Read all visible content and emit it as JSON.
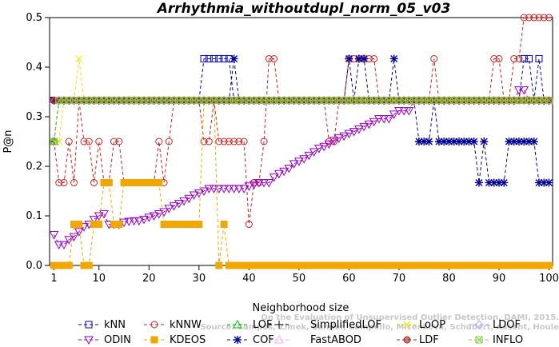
{
  "chart_data": {
    "type": "line",
    "title": "Arrhythmia_withoutdupl_norm_05_v03",
    "xlabel": "Neighborhood size",
    "ylabel": "P@n",
    "xlim": [
      1,
      100
    ],
    "ylim": [
      0,
      0.5
    ],
    "x_ticks": [
      "1",
      "10",
      "20",
      "30",
      "40",
      "50",
      "60",
      "70",
      "80",
      "90",
      "100"
    ],
    "y_ticks": [
      "0.0",
      "0.1",
      "0.2",
      "0.3",
      "0.4",
      "0.5"
    ],
    "grid": false,
    "legend_position": "bottom",
    "watermark": [
      "Source: Campos, Zimek, Sander, Campello, Micenkova, Schubert, Assent, Houle",
      "On the Evaluation of Unsupervised Outlier Detection, DAMI, 2015."
    ],
    "series": [
      {
        "name": "kNN",
        "color": "#0000cc",
        "marker": "square",
        "points": [
          [
            1,
            0.333
          ],
          [
            30,
            0.333
          ],
          [
            31,
            0.417
          ],
          [
            36,
            0.417
          ],
          [
            37,
            0.333
          ],
          [
            94,
            0.333
          ],
          [
            95,
            0.417
          ],
          [
            96,
            0.417
          ],
          [
            97,
            0.333
          ],
          [
            98,
            0.417
          ],
          [
            99,
            0.333
          ],
          [
            100,
            0.333
          ]
        ]
      },
      {
        "name": "kNNW",
        "color": "#cc2222",
        "marker": "circle",
        "points": [
          [
            1,
            0.25
          ],
          [
            2,
            0.167
          ],
          [
            3,
            0.167
          ],
          [
            4,
            0.25
          ],
          [
            5,
            0.167
          ],
          [
            6,
            0.333
          ],
          [
            7,
            0.25
          ],
          [
            8,
            0.25
          ],
          [
            9,
            0.167
          ],
          [
            10,
            0.25
          ],
          [
            11,
            0.167
          ],
          [
            12,
            0.167
          ],
          [
            13,
            0.25
          ],
          [
            14,
            0.25
          ],
          [
            15,
            0.167
          ],
          [
            16,
            0.167
          ],
          [
            17,
            0.167
          ],
          [
            18,
            0.167
          ],
          [
            19,
            0.167
          ],
          [
            20,
            0.167
          ],
          [
            21,
            0.167
          ],
          [
            22,
            0.25
          ],
          [
            23,
            0.167
          ],
          [
            24,
            0.25
          ],
          [
            25,
            0.333
          ],
          [
            30,
            0.333
          ],
          [
            31,
            0.25
          ],
          [
            32,
            0.25
          ],
          [
            33,
            0.333
          ],
          [
            34,
            0.25
          ],
          [
            35,
            0.25
          ],
          [
            36,
            0.25
          ],
          [
            37,
            0.25
          ],
          [
            38,
            0.25
          ],
          [
            39,
            0.25
          ],
          [
            40,
            0.083
          ],
          [
            41,
            0.167
          ],
          [
            42,
            0.167
          ],
          [
            43,
            0.25
          ],
          [
            44,
            0.417
          ],
          [
            45,
            0.417
          ],
          [
            46,
            0.333
          ],
          [
            55,
            0.333
          ],
          [
            56,
            0.25
          ],
          [
            57,
            0.25
          ],
          [
            58,
            0.333
          ],
          [
            59,
            0.333
          ],
          [
            60,
            0.417
          ],
          [
            61,
            0.417
          ],
          [
            62,
            0.417
          ],
          [
            63,
            0.417
          ],
          [
            64,
            0.417
          ],
          [
            65,
            0.417
          ],
          [
            66,
            0.333
          ],
          [
            76,
            0.333
          ],
          [
            77,
            0.417
          ],
          [
            78,
            0.333
          ],
          [
            88,
            0.333
          ],
          [
            89,
            0.417
          ],
          [
            90,
            0.417
          ],
          [
            91,
            0.333
          ],
          [
            92,
            0.333
          ],
          [
            93,
            0.417
          ],
          [
            94,
            0.417
          ],
          [
            95,
            0.5
          ],
          [
            96,
            0.5
          ],
          [
            97,
            0.5
          ],
          [
            98,
            0.5
          ],
          [
            99,
            0.5
          ],
          [
            100,
            0.5
          ]
        ]
      },
      {
        "name": "LOF",
        "color": "#00bb00",
        "marker": "triangle-up",
        "points": [
          [
            1,
            0.25
          ],
          [
            2,
            0.333
          ],
          [
            100,
            0.333
          ]
        ]
      },
      {
        "name": "SimplifiedLOF",
        "color": "#000000",
        "marker": "plus",
        "points": [
          [
            1,
            0.25
          ],
          [
            2,
            0.333
          ],
          [
            100,
            0.333
          ]
        ]
      },
      {
        "name": "LoOP",
        "color": "#e8e800",
        "marker": "cross",
        "points": [
          [
            1,
            0.25
          ],
          [
            2,
            0.25
          ],
          [
            3,
            0.333
          ],
          [
            5,
            0.333
          ],
          [
            6,
            0.417
          ],
          [
            7,
            0.333
          ],
          [
            100,
            0.333
          ]
        ]
      },
      {
        "name": "LDOF",
        "color": "#aaaaff",
        "marker": "diamond",
        "points": [
          [
            1,
            0.333
          ],
          [
            100,
            0.333
          ]
        ]
      },
      {
        "name": "ODIN",
        "color": "#9900cc",
        "marker": "triangle-down",
        "points": [
          [
            1,
            0.062
          ],
          [
            2,
            0.042
          ],
          [
            3,
            0.042
          ],
          [
            4,
            0.052
          ],
          [
            5,
            0.058
          ],
          [
            6,
            0.068
          ],
          [
            7,
            0.078
          ],
          [
            8,
            0.083
          ],
          [
            9,
            0.093
          ],
          [
            10,
            0.1
          ],
          [
            11,
            0.104
          ],
          [
            12,
            0.083
          ],
          [
            13,
            0.083
          ],
          [
            14,
            0.083
          ],
          [
            15,
            0.087
          ],
          [
            16,
            0.089
          ],
          [
            17,
            0.09
          ],
          [
            18,
            0.09
          ],
          [
            19,
            0.093
          ],
          [
            20,
            0.097
          ],
          [
            21,
            0.1
          ],
          [
            22,
            0.104
          ],
          [
            23,
            0.108
          ],
          [
            24,
            0.115
          ],
          [
            25,
            0.12
          ],
          [
            26,
            0.125
          ],
          [
            27,
            0.13
          ],
          [
            28,
            0.135
          ],
          [
            29,
            0.142
          ],
          [
            30,
            0.146
          ],
          [
            31,
            0.15
          ],
          [
            32,
            0.155
          ],
          [
            33,
            0.155
          ],
          [
            34,
            0.155
          ],
          [
            35,
            0.155
          ],
          [
            36,
            0.155
          ],
          [
            37,
            0.155
          ],
          [
            38,
            0.155
          ],
          [
            39,
            0.155
          ],
          [
            40,
            0.16
          ],
          [
            41,
            0.163
          ],
          [
            42,
            0.167
          ],
          [
            43,
            0.167
          ],
          [
            44,
            0.167
          ],
          [
            45,
            0.178
          ],
          [
            46,
            0.185
          ],
          [
            47,
            0.19
          ],
          [
            48,
            0.196
          ],
          [
            49,
            0.205
          ],
          [
            50,
            0.21
          ],
          [
            51,
            0.215
          ],
          [
            52,
            0.222
          ],
          [
            53,
            0.229
          ],
          [
            54,
            0.236
          ],
          [
            55,
            0.24
          ],
          [
            56,
            0.245
          ],
          [
            57,
            0.252
          ],
          [
            58,
            0.257
          ],
          [
            59,
            0.261
          ],
          [
            60,
            0.266
          ],
          [
            61,
            0.27
          ],
          [
            62,
            0.275
          ],
          [
            63,
            0.28
          ],
          [
            64,
            0.285
          ],
          [
            65,
            0.29
          ],
          [
            66,
            0.296
          ],
          [
            67,
            0.296
          ],
          [
            68,
            0.296
          ],
          [
            69,
            0.305
          ],
          [
            70,
            0.312
          ],
          [
            71,
            0.312
          ],
          [
            72,
            0.312
          ],
          [
            73,
            0.333
          ],
          [
            93,
            0.333
          ],
          [
            94,
            0.354
          ],
          [
            95,
            0.354
          ],
          [
            96,
            0.333
          ],
          [
            100,
            0.333
          ]
        ]
      },
      {
        "name": "KDEOS",
        "color": "#f0a800",
        "marker": "square-filled",
        "points": [
          [
            1,
            0.0
          ],
          [
            4,
            0.0
          ],
          [
            5,
            0.083
          ],
          [
            6,
            0.083
          ],
          [
            7,
            0.0
          ],
          [
            8,
            0.0
          ],
          [
            9,
            0.083
          ],
          [
            10,
            0.083
          ],
          [
            11,
            0.167
          ],
          [
            12,
            0.167
          ],
          [
            13,
            0.083
          ],
          [
            14,
            0.083
          ],
          [
            15,
            0.167
          ],
          [
            16,
            0.167
          ],
          [
            17,
            0.167
          ],
          [
            18,
            0.167
          ],
          [
            19,
            0.167
          ],
          [
            20,
            0.167
          ],
          [
            21,
            0.167
          ],
          [
            22,
            0.167
          ],
          [
            23,
            0.083
          ],
          [
            24,
            0.083
          ],
          [
            25,
            0.083
          ],
          [
            26,
            0.083
          ],
          [
            27,
            0.083
          ],
          [
            28,
            0.083
          ],
          [
            29,
            0.083
          ],
          [
            30,
            0.083
          ],
          [
            31,
            0.333
          ],
          [
            32,
            0.333
          ],
          [
            33,
            0.333
          ],
          [
            34,
            0.0
          ],
          [
            35,
            0.083
          ],
          [
            36,
            0.0
          ],
          [
            100,
            0.0
          ]
        ]
      },
      {
        "name": "COF",
        "color": "#000099",
        "marker": "star",
        "points": [
          [
            1,
            0.333
          ],
          [
            36,
            0.333
          ],
          [
            37,
            0.417
          ],
          [
            38,
            0.333
          ],
          [
            59,
            0.333
          ],
          [
            60,
            0.417
          ],
          [
            61,
            0.333
          ],
          [
            62,
            0.417
          ],
          [
            63,
            0.417
          ],
          [
            64,
            0.333
          ],
          [
            68,
            0.333
          ],
          [
            69,
            0.417
          ],
          [
            70,
            0.333
          ],
          [
            73,
            0.333
          ],
          [
            74,
            0.25
          ],
          [
            75,
            0.25
          ],
          [
            76,
            0.25
          ],
          [
            77,
            0.333
          ],
          [
            78,
            0.25
          ],
          [
            79,
            0.25
          ],
          [
            80,
            0.25
          ],
          [
            81,
            0.25
          ],
          [
            82,
            0.25
          ],
          [
            83,
            0.25
          ],
          [
            84,
            0.25
          ],
          [
            85,
            0.25
          ],
          [
            86,
            0.167
          ],
          [
            87,
            0.25
          ],
          [
            88,
            0.167
          ],
          [
            89,
            0.167
          ],
          [
            90,
            0.167
          ],
          [
            91,
            0.167
          ],
          [
            92,
            0.25
          ],
          [
            93,
            0.25
          ],
          [
            94,
            0.25
          ],
          [
            95,
            0.25
          ],
          [
            96,
            0.25
          ],
          [
            97,
            0.25
          ],
          [
            98,
            0.167
          ],
          [
            99,
            0.167
          ],
          [
            100,
            0.167
          ]
        ]
      },
      {
        "name": "FastABOD",
        "color": "#ffaaff",
        "marker": "triangle-open",
        "points": [
          [
            1,
            0.333
          ],
          [
            100,
            0.333
          ]
        ]
      },
      {
        "name": "LDF",
        "color": "#aa2222",
        "marker": "circle-filled",
        "points": [
          [
            1,
            0.333
          ],
          [
            100,
            0.333
          ]
        ]
      },
      {
        "name": "INFLO",
        "color": "#88cc44",
        "marker": "square-x",
        "points": [
          [
            1,
            0.25
          ],
          [
            2,
            0.333
          ],
          [
            100,
            0.333
          ]
        ]
      }
    ]
  }
}
